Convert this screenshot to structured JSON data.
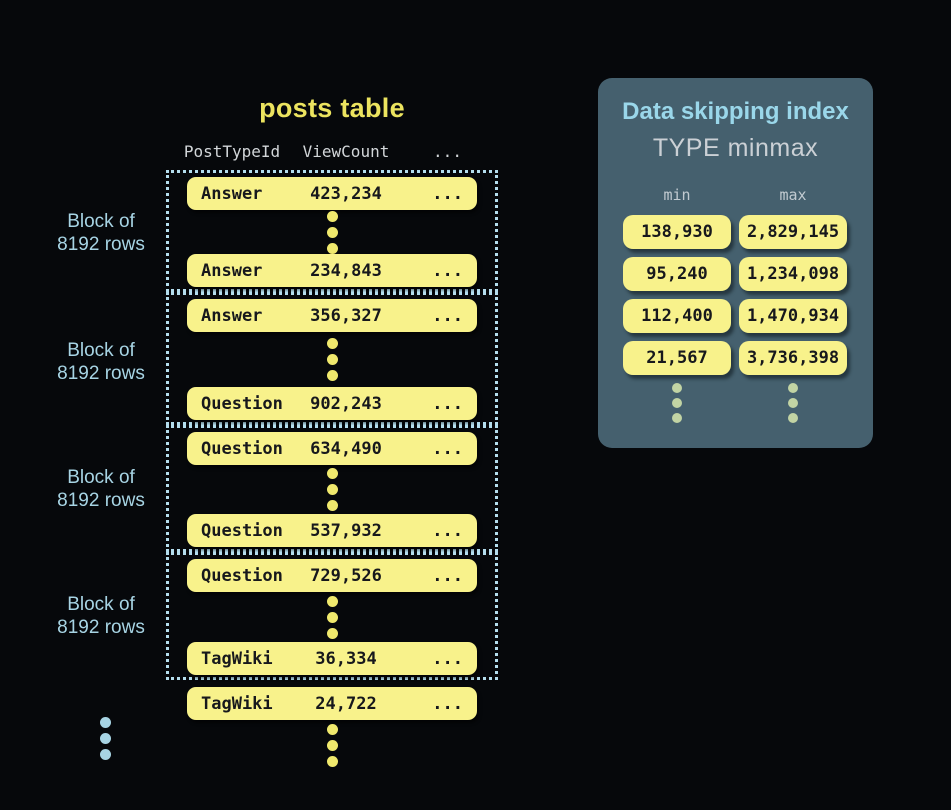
{
  "colors": {
    "bg": "#06080b",
    "title-yellow": "#ece45f",
    "header-gray": "#d2d6d9",
    "chip-yellow": "#f8f28b",
    "chip-text": "#17181c",
    "dotted-border": "#b4deee",
    "accent-blue": "#a7d4e4",
    "yellow-dots": "#f0e96d",
    "panel-bg": "#45606e",
    "panel-title": "#9ad7ea",
    "panel-subtitle": "#cbd0d5",
    "panel-label": "#c2cbd1",
    "panel-dots": "#c2d4a4"
  },
  "posts_table": {
    "title": "posts table",
    "columns": {
      "col1": "PostTypeId",
      "col2": "ViewCount",
      "col3": "..."
    },
    "block_label": {
      "line1": "Block of",
      "line2": "8192 rows"
    },
    "blocks": [
      {
        "first": {
          "type": "Answer",
          "views": "423,234",
          "more": "..."
        },
        "last": {
          "type": "Answer",
          "views": "234,843",
          "more": "..."
        }
      },
      {
        "first": {
          "type": "Answer",
          "views": "356,327",
          "more": "..."
        },
        "last": {
          "type": "Question",
          "views": "902,243",
          "more": "..."
        }
      },
      {
        "first": {
          "type": "Question",
          "views": "634,490",
          "more": "..."
        },
        "last": {
          "type": "Question",
          "views": "537,932",
          "more": "..."
        }
      },
      {
        "first": {
          "type": "Question",
          "views": "729,526",
          "more": "..."
        },
        "last": {
          "type": "TagWiki",
          "views": "36,334",
          "more": "..."
        }
      }
    ],
    "tail_row": {
      "type": "TagWiki",
      "views": "24,722",
      "more": "..."
    }
  },
  "skipping_index": {
    "title": "Data skipping index",
    "subtitle": "TYPE minmax",
    "min_label": "min",
    "max_label": "max",
    "rows": [
      {
        "min": "138,930",
        "max": "2,829,145"
      },
      {
        "min": "95,240",
        "max": "1,234,098"
      },
      {
        "min": "112,400",
        "max": "1,470,934"
      },
      {
        "min": "21,567",
        "max": "3,736,398"
      }
    ]
  }
}
